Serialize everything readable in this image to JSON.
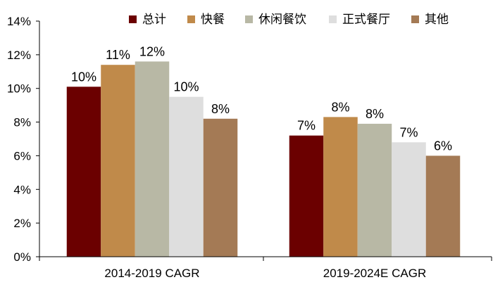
{
  "chart_data": {
    "type": "bar",
    "title": "",
    "xlabel": "",
    "ylabel": "",
    "categories": [
      "2014-2019 CAGR",
      "2019-2024E CAGR"
    ],
    "ylim": [
      0,
      14
    ],
    "yticks": [
      0,
      2,
      4,
      6,
      8,
      10,
      12,
      14
    ],
    "ytick_suffix": "%",
    "grid": false,
    "legend_position": "top",
    "series": [
      {
        "name": "总计",
        "color": "#6B0000",
        "values": [
          10.1,
          7.2
        ],
        "labels": [
          "10%",
          "7%"
        ]
      },
      {
        "name": "快餐",
        "color": "#C08A4A",
        "values": [
          11.4,
          8.3
        ],
        "labels": [
          "11%",
          "8%"
        ]
      },
      {
        "name": "休闲餐饮",
        "color": "#B8B8A5",
        "values": [
          11.6,
          7.9
        ],
        "labels": [
          "12%",
          "8%"
        ]
      },
      {
        "name": "正式餐厅",
        "color": "#DEDEDE",
        "values": [
          9.5,
          6.8
        ],
        "labels": [
          "10%",
          "7%"
        ]
      },
      {
        "name": "其他",
        "color": "#A47A55",
        "values": [
          8.2,
          6.0
        ],
        "labels": [
          "8%",
          "6%"
        ]
      }
    ]
  }
}
